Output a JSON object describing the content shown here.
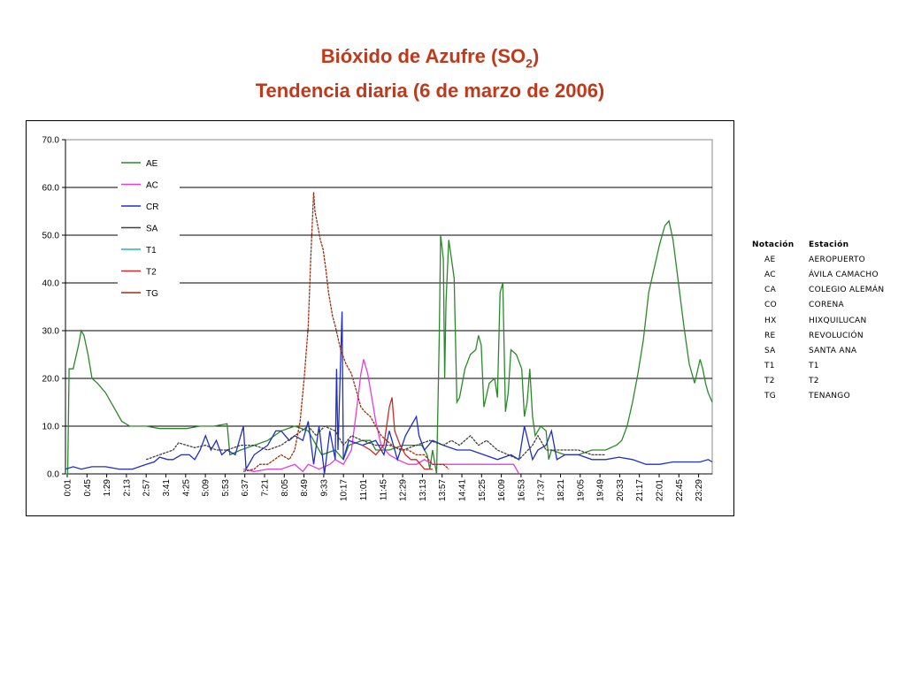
{
  "title": {
    "line1_prefix": "Bióxido de Azufre (SO",
    "line1_sub": "2",
    "line1_suffix": ")",
    "line2": "Tendencia diaria (6 de marzo de 2006)"
  },
  "chart_data": {
    "type": "line",
    "ylim": [
      0,
      70
    ],
    "yticks": [
      "0.0",
      "10.0",
      "20.0",
      "30.0",
      "40.0",
      "50.0",
      "60.0",
      "70.0"
    ],
    "xlim": [
      0.0167,
      23.95
    ],
    "xticks": [
      "0:01",
      "0:45",
      "1:29",
      "2:13",
      "2:57",
      "3:41",
      "4:25",
      "5:09",
      "5:53",
      "6:37",
      "7:21",
      "8:05",
      "8:49",
      "9:33",
      "10:17",
      "11:01",
      "11:45",
      "12:29",
      "13:13",
      "13:57",
      "14:41",
      "15:25",
      "16:09",
      "16:53",
      "17:37",
      "18:21",
      "19:05",
      "19:49",
      "20:33",
      "21:17",
      "22:01",
      "22:45",
      "23:29"
    ],
    "grid": "horizontal",
    "legend_position": "top-left",
    "series": [
      {
        "name": "AE",
        "color": "#2a8a2a",
        "points": [
          [
            0.0167,
            0
          ],
          [
            0.1,
            0
          ],
          [
            0.15,
            22
          ],
          [
            0.3,
            22
          ],
          [
            0.5,
            27
          ],
          [
            0.6,
            30
          ],
          [
            0.7,
            29
          ],
          [
            0.85,
            25
          ],
          [
            1.0,
            20
          ],
          [
            1.2,
            19
          ],
          [
            1.5,
            17
          ],
          [
            1.8,
            14
          ],
          [
            2.1,
            11
          ],
          [
            2.4,
            10
          ],
          [
            3.0,
            10
          ],
          [
            3.5,
            9.5
          ],
          [
            4.0,
            9.5
          ],
          [
            4.5,
            9.5
          ],
          [
            5.0,
            10
          ],
          [
            5.5,
            10
          ],
          [
            6.0,
            10.5
          ],
          [
            6.1,
            4
          ],
          [
            6.5,
            5
          ],
          [
            7.0,
            6
          ],
          [
            7.5,
            7
          ],
          [
            8.0,
            9
          ],
          [
            8.5,
            10
          ],
          [
            9.0,
            9
          ],
          [
            9.3,
            6
          ],
          [
            9.5,
            4
          ],
          [
            10.0,
            5
          ],
          [
            10.3,
            3
          ],
          [
            10.5,
            6
          ],
          [
            11.0,
            7
          ],
          [
            11.3,
            7
          ],
          [
            11.5,
            5
          ],
          [
            12.0,
            5
          ],
          [
            12.5,
            6
          ],
          [
            13.0,
            6
          ],
          [
            13.2,
            6
          ],
          [
            13.4,
            4
          ],
          [
            13.5,
            1
          ],
          [
            13.6,
            5
          ],
          [
            13.75,
            0
          ],
          [
            13.85,
            29
          ],
          [
            13.9,
            50
          ],
          [
            14.0,
            45
          ],
          [
            14.05,
            20
          ],
          [
            14.1,
            36
          ],
          [
            14.2,
            49
          ],
          [
            14.3,
            45
          ],
          [
            14.4,
            41
          ],
          [
            14.5,
            15
          ],
          [
            14.6,
            16
          ],
          [
            14.8,
            22
          ],
          [
            15.0,
            25
          ],
          [
            15.2,
            26
          ],
          [
            15.3,
            29
          ],
          [
            15.4,
            27
          ],
          [
            15.5,
            14
          ],
          [
            15.7,
            19
          ],
          [
            15.9,
            20
          ],
          [
            16.0,
            16
          ],
          [
            16.1,
            38
          ],
          [
            16.2,
            40
          ],
          [
            16.3,
            13
          ],
          [
            16.4,
            17
          ],
          [
            16.5,
            26
          ],
          [
            16.7,
            25
          ],
          [
            16.9,
            22
          ],
          [
            17.0,
            12
          ],
          [
            17.1,
            15
          ],
          [
            17.2,
            22
          ],
          [
            17.3,
            12
          ],
          [
            17.4,
            8
          ],
          [
            17.6,
            10
          ],
          [
            17.8,
            9
          ],
          [
            17.9,
            3
          ],
          [
            18.0,
            5
          ],
          [
            18.5,
            4
          ],
          [
            19.0,
            4
          ],
          [
            19.5,
            5
          ],
          [
            20.0,
            5
          ],
          [
            20.4,
            6
          ],
          [
            20.6,
            7
          ],
          [
            20.8,
            10
          ],
          [
            21.0,
            15
          ],
          [
            21.2,
            21
          ],
          [
            21.4,
            28
          ],
          [
            21.6,
            38
          ],
          [
            21.8,
            43
          ],
          [
            22.0,
            48
          ],
          [
            22.2,
            52
          ],
          [
            22.35,
            53
          ],
          [
            22.5,
            49
          ],
          [
            22.7,
            40
          ],
          [
            22.9,
            31
          ],
          [
            23.1,
            23
          ],
          [
            23.3,
            19
          ],
          [
            23.5,
            24
          ],
          [
            23.6,
            22
          ],
          [
            23.7,
            19
          ],
          [
            23.8,
            17
          ],
          [
            23.95,
            15
          ]
        ]
      },
      {
        "name": "AC",
        "color": "#e23ce2",
        "points": [
          [
            6.6,
            1
          ],
          [
            7.0,
            0.5
          ],
          [
            7.5,
            1
          ],
          [
            8.0,
            1
          ],
          [
            8.5,
            2
          ],
          [
            8.8,
            0.5
          ],
          [
            9.0,
            2
          ],
          [
            9.4,
            1
          ],
          [
            9.8,
            2
          ],
          [
            10.0,
            3
          ],
          [
            10.3,
            2
          ],
          [
            10.6,
            5
          ],
          [
            10.8,
            14
          ],
          [
            10.95,
            21
          ],
          [
            11.05,
            24
          ],
          [
            11.2,
            21
          ],
          [
            11.35,
            16
          ],
          [
            11.5,
            11
          ],
          [
            11.7,
            6
          ],
          [
            12.0,
            4
          ],
          [
            12.3,
            3
          ],
          [
            12.7,
            2
          ],
          [
            13.0,
            2
          ],
          [
            13.3,
            3
          ],
          [
            13.6,
            2
          ],
          [
            14.0,
            2
          ],
          [
            14.5,
            2
          ],
          [
            15.0,
            2
          ],
          [
            15.5,
            2
          ],
          [
            16.0,
            2
          ],
          [
            16.6,
            2
          ],
          [
            16.8,
            0
          ]
        ]
      },
      {
        "name": "CR",
        "color": "#1e2fc8",
        "points": [
          [
            0.0167,
            1
          ],
          [
            0.3,
            1.5
          ],
          [
            0.6,
            1
          ],
          [
            1.0,
            1.5
          ],
          [
            1.5,
            1.5
          ],
          [
            2.0,
            1
          ],
          [
            2.5,
            1
          ],
          [
            3.0,
            2
          ],
          [
            3.3,
            2.5
          ],
          [
            3.5,
            3.5
          ],
          [
            3.8,
            3
          ],
          [
            4.0,
            3
          ],
          [
            4.3,
            4
          ],
          [
            4.6,
            4
          ],
          [
            4.8,
            3
          ],
          [
            5.0,
            5
          ],
          [
            5.2,
            8
          ],
          [
            5.4,
            5
          ],
          [
            5.6,
            7
          ],
          [
            5.8,
            4
          ],
          [
            6.0,
            5
          ],
          [
            6.3,
            4
          ],
          [
            6.6,
            10
          ],
          [
            6.7,
            1
          ],
          [
            7.0,
            4
          ],
          [
            7.5,
            6
          ],
          [
            7.8,
            9
          ],
          [
            8.0,
            9
          ],
          [
            8.3,
            7
          ],
          [
            8.5,
            8
          ],
          [
            8.8,
            7
          ],
          [
            9.0,
            11
          ],
          [
            9.2,
            2
          ],
          [
            9.4,
            10
          ],
          [
            9.6,
            0
          ],
          [
            9.8,
            9
          ],
          [
            10.0,
            3
          ],
          [
            10.05,
            22
          ],
          [
            10.1,
            5
          ],
          [
            10.25,
            34
          ],
          [
            10.3,
            3
          ],
          [
            10.5,
            7
          ],
          [
            11.0,
            6
          ],
          [
            11.5,
            7
          ],
          [
            11.8,
            4
          ],
          [
            12.0,
            9
          ],
          [
            12.3,
            3
          ],
          [
            12.6,
            8
          ],
          [
            12.8,
            10
          ],
          [
            13.0,
            12
          ],
          [
            13.1,
            8
          ],
          [
            13.3,
            5
          ],
          [
            13.6,
            7
          ],
          [
            14.0,
            6
          ],
          [
            14.5,
            5
          ],
          [
            15.0,
            5
          ],
          [
            15.5,
            4
          ],
          [
            16.0,
            3
          ],
          [
            16.5,
            4
          ],
          [
            16.8,
            3
          ],
          [
            17.0,
            10
          ],
          [
            17.3,
            3
          ],
          [
            17.5,
            5
          ],
          [
            17.8,
            6
          ],
          [
            18.0,
            9
          ],
          [
            18.2,
            3
          ],
          [
            18.5,
            4
          ],
          [
            19.0,
            4
          ],
          [
            19.5,
            3
          ],
          [
            20.0,
            3
          ],
          [
            20.5,
            3.5
          ],
          [
            21.0,
            3
          ],
          [
            21.5,
            2
          ],
          [
            22.0,
            2
          ],
          [
            22.5,
            2.5
          ],
          [
            23.0,
            2.5
          ],
          [
            23.5,
            2.5
          ],
          [
            23.8,
            3
          ],
          [
            23.95,
            2.5
          ]
        ]
      },
      {
        "name": "SA",
        "color": "#404040",
        "points": [
          [
            3.0,
            3
          ],
          [
            3.5,
            4
          ],
          [
            4.0,
            5
          ],
          [
            4.2,
            6.5
          ],
          [
            4.5,
            6
          ],
          [
            4.8,
            5.5
          ],
          [
            5.2,
            6
          ],
          [
            5.6,
            5
          ],
          [
            6.0,
            5
          ],
          [
            6.5,
            6
          ],
          [
            7.0,
            6
          ],
          [
            7.5,
            5
          ],
          [
            8.0,
            6
          ],
          [
            8.5,
            8
          ],
          [
            9.0,
            10
          ],
          [
            9.3,
            8
          ],
          [
            9.6,
            10
          ],
          [
            10.0,
            9
          ],
          [
            10.3,
            6
          ],
          [
            10.6,
            8
          ],
          [
            11.0,
            7
          ],
          [
            11.5,
            6
          ],
          [
            12.0,
            6
          ],
          [
            12.5,
            5
          ],
          [
            13.0,
            6
          ],
          [
            13.5,
            7
          ],
          [
            14.0,
            6
          ],
          [
            14.3,
            7
          ],
          [
            14.6,
            6
          ],
          [
            15.0,
            8
          ],
          [
            15.3,
            6
          ],
          [
            15.6,
            7
          ],
          [
            16.0,
            5
          ],
          [
            16.4,
            4
          ],
          [
            16.8,
            3
          ],
          [
            17.3,
            6
          ],
          [
            17.5,
            8
          ],
          [
            17.8,
            5
          ],
          [
            18.0,
            5
          ],
          [
            18.5,
            5
          ],
          [
            19.0,
            5
          ],
          [
            19.5,
            4
          ],
          [
            20.0,
            4
          ]
        ]
      },
      {
        "name": "T1",
        "color": "#20b0c8",
        "points": []
      },
      {
        "name": "T2",
        "color": "#d02828",
        "points": [
          [
            11.0,
            6
          ],
          [
            11.3,
            5
          ],
          [
            11.5,
            4
          ],
          [
            11.8,
            6
          ],
          [
            12.0,
            14
          ],
          [
            12.1,
            16
          ],
          [
            12.2,
            9
          ],
          [
            12.4,
            6
          ],
          [
            12.6,
            4
          ],
          [
            12.8,
            3
          ],
          [
            13.0,
            3
          ],
          [
            13.3,
            1
          ],
          [
            13.6,
            1
          ]
        ]
      },
      {
        "name": "TG",
        "color": "#9a3010",
        "points": [
          [
            6.6,
            0.5
          ],
          [
            7.0,
            1
          ],
          [
            7.2,
            2
          ],
          [
            7.5,
            2
          ],
          [
            8.0,
            4
          ],
          [
            8.3,
            3
          ],
          [
            8.5,
            5
          ],
          [
            8.7,
            11
          ],
          [
            8.85,
            20
          ],
          [
            9.0,
            31
          ],
          [
            9.1,
            46
          ],
          [
            9.2,
            59
          ],
          [
            9.25,
            55
          ],
          [
            9.35,
            52
          ],
          [
            9.45,
            49
          ],
          [
            9.55,
            47
          ],
          [
            9.65,
            43
          ],
          [
            9.75,
            38
          ],
          [
            9.9,
            33
          ],
          [
            10.0,
            31
          ],
          [
            10.2,
            26
          ],
          [
            10.4,
            23
          ],
          [
            10.6,
            21
          ],
          [
            10.8,
            17
          ],
          [
            10.95,
            14
          ],
          [
            11.1,
            13
          ],
          [
            11.3,
            12
          ],
          [
            11.5,
            10
          ],
          [
            11.7,
            8
          ],
          [
            11.9,
            7
          ],
          [
            12.1,
            6
          ],
          [
            12.4,
            5
          ],
          [
            12.7,
            5
          ],
          [
            13.0,
            4
          ],
          [
            13.3,
            4
          ],
          [
            13.6,
            2
          ],
          [
            14.0,
            2
          ],
          [
            14.2,
            1
          ]
        ]
      }
    ]
  },
  "station_table": {
    "headers": [
      "Notación",
      "Estación"
    ],
    "rows": [
      [
        "AE",
        "AEROPUERTO"
      ],
      [
        "AC",
        "ÁVILA CAMACHO"
      ],
      [
        "CA",
        "COLEGIO ALEMÁN"
      ],
      [
        "CO",
        "CORENA"
      ],
      [
        "HX",
        "HIXQUILUCAN"
      ],
      [
        "RE",
        "REVOLUCIÓN"
      ],
      [
        "SA",
        "SANTA ANA"
      ],
      [
        "T1",
        "T1"
      ],
      [
        "T2",
        "T2"
      ],
      [
        "TG",
        "TENANGO"
      ]
    ]
  }
}
